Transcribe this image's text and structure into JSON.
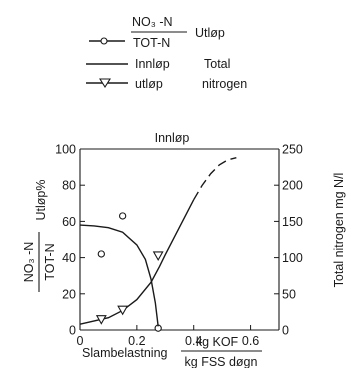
{
  "chart_data": {
    "type": "line",
    "legend": {
      "placement": "top",
      "entries": [
        {
          "label_num": "NO₃ -N",
          "label_den": "TOT-N",
          "label_right": "Utløp",
          "marker": "circle",
          "line": "solid"
        },
        {
          "label": "Innløp",
          "group_label": "Total",
          "marker": "none",
          "line": "solid"
        },
        {
          "label": "utløp",
          "group_label": "nitrogen",
          "marker": "triangle-down",
          "line": "solid"
        }
      ]
    },
    "top_label": "Innløp",
    "x_axis": {
      "label": "Slambelastning",
      "unit_num": "kg KOF",
      "unit_den": "kg FSS døgn",
      "range": [
        0,
        0.7
      ],
      "ticks": [
        0,
        0.2,
        0.4,
        0.6
      ],
      "tick_labels": [
        "0",
        "0.2",
        "0.4",
        "0.6"
      ]
    },
    "y_left": {
      "label_num": "NO₃ -N",
      "label_den": "TOT-N",
      "label_right": "Utløp%",
      "range": [
        0,
        100
      ],
      "ticks": [
        0,
        20,
        40,
        60,
        80,
        100
      ],
      "tick_labels": [
        "0",
        "20",
        "40",
        "60",
        "80",
        "100"
      ]
    },
    "y_right": {
      "label": "Total nitrogen mg N/l",
      "range": [
        0,
        250
      ],
      "ticks": [
        0,
        50,
        100,
        150,
        200,
        250
      ],
      "tick_labels": [
        "0",
        "50",
        "100",
        "150",
        "200",
        "250"
      ]
    },
    "grid": false,
    "series": [
      {
        "name": "NO3-N/TOT-N Utløp (points)",
        "axis": "left",
        "style": "points",
        "marker": "circle",
        "points": [
          [
            0.075,
            42
          ],
          [
            0.15,
            63
          ],
          [
            0.275,
            1
          ]
        ]
      },
      {
        "name": "NO3-N/TOT-N Utløp (curve)",
        "axis": "left",
        "style": "solid",
        "points": [
          [
            0.0,
            58
          ],
          [
            0.05,
            57.5
          ],
          [
            0.1,
            56.5
          ],
          [
            0.15,
            54
          ],
          [
            0.2,
            47
          ],
          [
            0.23,
            39
          ],
          [
            0.25,
            28
          ],
          [
            0.265,
            15
          ],
          [
            0.275,
            2
          ]
        ]
      },
      {
        "name": "Innløp",
        "axis": "right",
        "style": "solid",
        "points": [
          [
            0.0,
            8
          ],
          [
            0.1,
            17
          ],
          [
            0.15,
            27
          ],
          [
            0.2,
            42
          ],
          [
            0.25,
            66
          ],
          [
            0.28,
            88
          ],
          [
            0.3,
            104
          ],
          [
            0.35,
            142
          ],
          [
            0.4,
            180
          ]
        ]
      },
      {
        "name": "Innløp (extrapolated)",
        "axis": "right",
        "style": "dashed",
        "points": [
          [
            0.4,
            180
          ],
          [
            0.43,
            200
          ],
          [
            0.46,
            216
          ],
          [
            0.49,
            228
          ],
          [
            0.52,
            235
          ],
          [
            0.55,
            238
          ]
        ]
      },
      {
        "name": "utløp",
        "axis": "right",
        "style": "points",
        "marker": "triangle-down",
        "points": [
          [
            0.075,
            15
          ],
          [
            0.15,
            28
          ],
          [
            0.275,
            103
          ]
        ]
      }
    ]
  }
}
